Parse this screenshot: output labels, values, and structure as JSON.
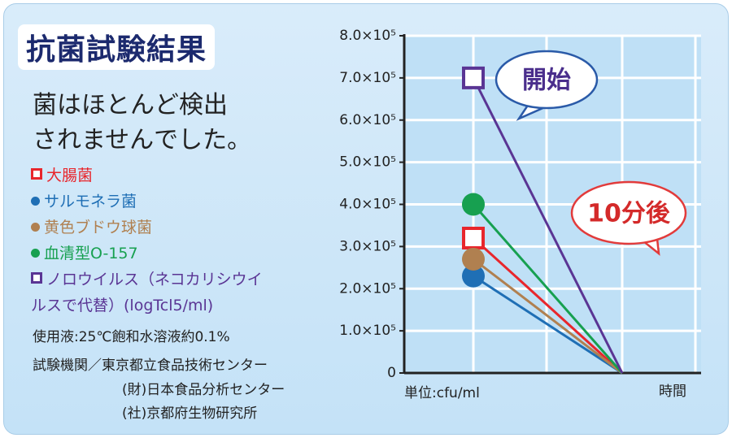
{
  "chart_data": {
    "type": "line",
    "title": "抗菌試験結果",
    "subtitle": [
      "菌はほとんど検出",
      "されませんでした。"
    ],
    "notes": [
      "使用液:25℃飽和水溶液約0.1%",
      "試験機関／東京都立食品技術センター",
      "(財)日本食品分析センター",
      "(社)京都府生物研究所"
    ],
    "y_label": "単位:cfu/ml",
    "x_label": "時間",
    "categories": [
      "開始",
      "10分後"
    ],
    "series": [
      {
        "name": "大腸菌",
        "color": "#e8262c",
        "marker": "square",
        "values": [
          320000,
          0
        ]
      },
      {
        "name": "サルモネラ菌",
        "color": "#1f6fb5",
        "marker": "circle",
        "values": [
          230000,
          0
        ]
      },
      {
        "name": "黄色ブドウ球菌",
        "color": "#b08050",
        "marker": "circle",
        "values": [
          270000,
          0
        ]
      },
      {
        "name": "血清型O-157",
        "color": "#17a050",
        "marker": "circle",
        "values": [
          400000,
          0
        ]
      },
      {
        "name": "ノロウイルス（ネコカリシウイルスで代替）(logTcl5/ml)",
        "color": "#5a3594",
        "marker": "square",
        "values": [
          700000,
          0
        ]
      }
    ],
    "marker_points": "first",
    "ylim": [
      0,
      800000
    ],
    "yticks": [
      0,
      {
        "value": 100000,
        "label": "1.0×10⁵"
      },
      {
        "value": 200000,
        "label": "2.0×10⁵"
      },
      {
        "value": 300000,
        "label": "3.0×10⁵"
      },
      {
        "value": 400000,
        "label": "4.0×10⁵"
      },
      {
        "value": 500000,
        "label": "5.0×10⁵"
      },
      {
        "value": 600000,
        "label": "6.0×10⁵"
      },
      {
        "value": 700000,
        "label": "7.0×10⁵"
      },
      {
        "value": 800000,
        "label": "8.0×10⁵"
      }
    ],
    "grid": true
  }
}
